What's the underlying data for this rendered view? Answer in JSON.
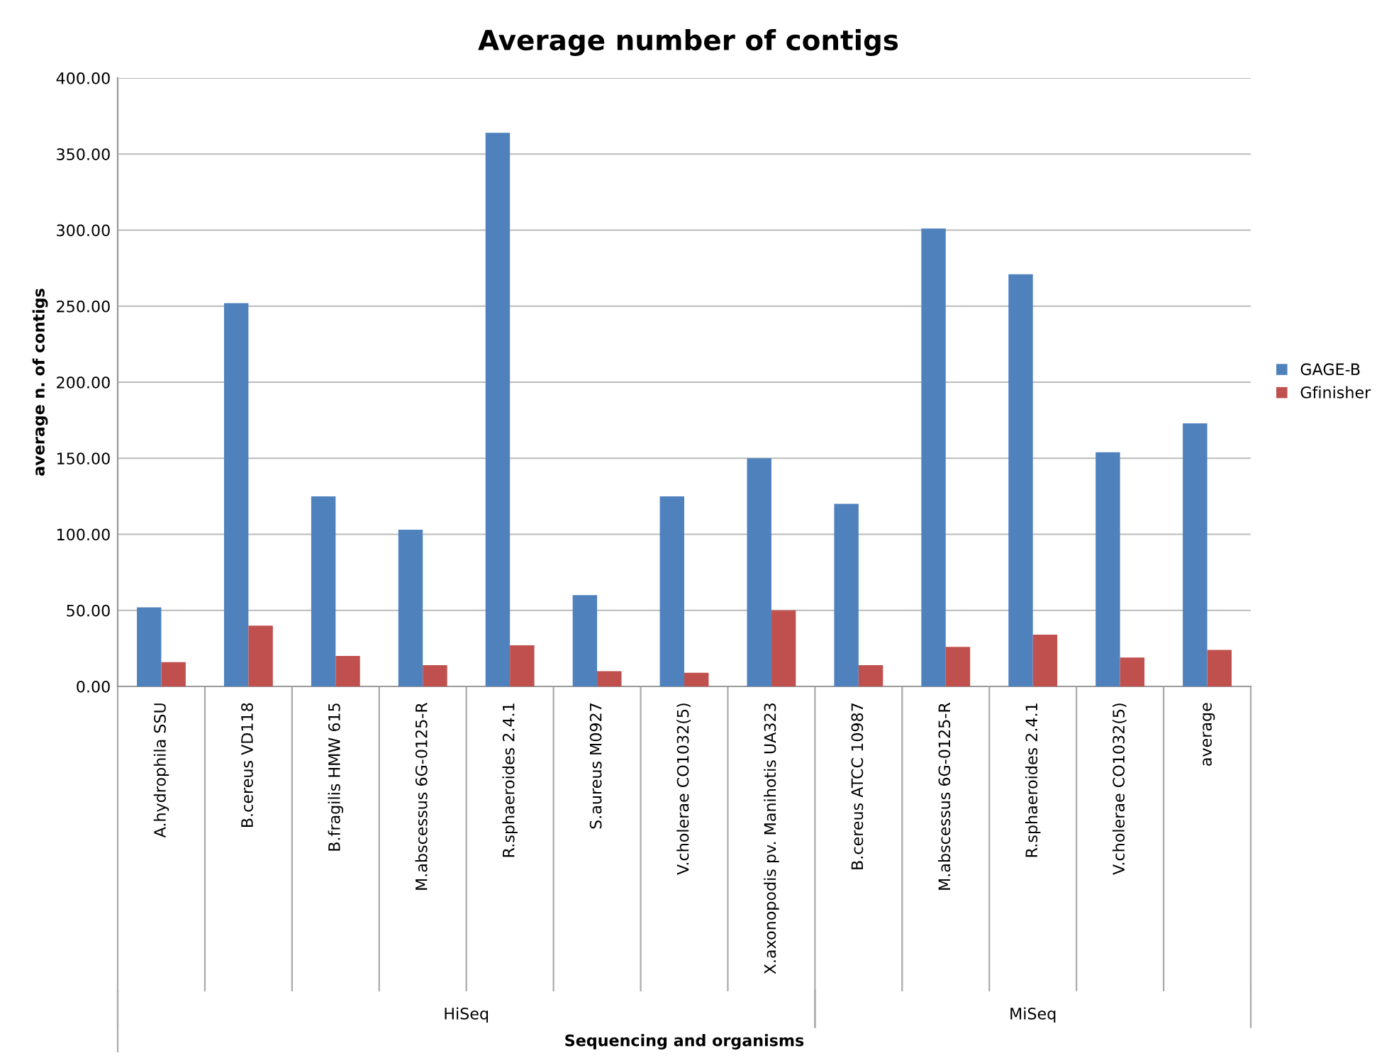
{
  "chart_data": {
    "type": "bar",
    "title": "Average number of contigs",
    "xlabel": "Sequencing and organisms",
    "ylabel": "average n. of contigs",
    "categories": [
      "A.hydrophila SSU",
      "B.cereus VD118",
      "B.fragilis HMW 615",
      "M.abscessus 6G-0125-R",
      "R.sphaeroides 2.4.1",
      "S.aureus M0927",
      "V.cholerae CO1032(5)",
      "X.axonopodis pv. Manihotis UA323",
      "B.cereus ATCC 10987",
      "M.abscessus 6G-0125-R",
      "R.sphaeroides 2.4.1",
      "V.cholerae CO1032(5)",
      "average"
    ],
    "series": [
      {
        "name": "GAGE-B",
        "color": "#4f81bd",
        "values": [
          52,
          252,
          125,
          103,
          364,
          60,
          125,
          150,
          120,
          301,
          271,
          154,
          173
        ]
      },
      {
        "name": "Gfinisher",
        "color": "#c0504d",
        "values": [
          16,
          40,
          20,
          14,
          27,
          10,
          9,
          50,
          14,
          26,
          34,
          19,
          24
        ]
      }
    ],
    "annotations": [
      "HiSeq",
      "MiSeq"
    ],
    "ylim": [
      0,
      400
    ],
    "yticks": [
      {
        "value": 0,
        "label": "0.00"
      },
      {
        "value": 50,
        "label": "50.00"
      },
      {
        "value": 100,
        "label": "100.00"
      },
      {
        "value": 150,
        "label": "150.00"
      },
      {
        "value": 200,
        "label": "200.00"
      },
      {
        "value": 250,
        "label": "250.00"
      },
      {
        "value": 300,
        "label": "300.00"
      },
      {
        "value": 350,
        "label": "350.00"
      },
      {
        "value": 400,
        "label": "400.00"
      }
    ],
    "grid": "y",
    "legend": "right"
  }
}
